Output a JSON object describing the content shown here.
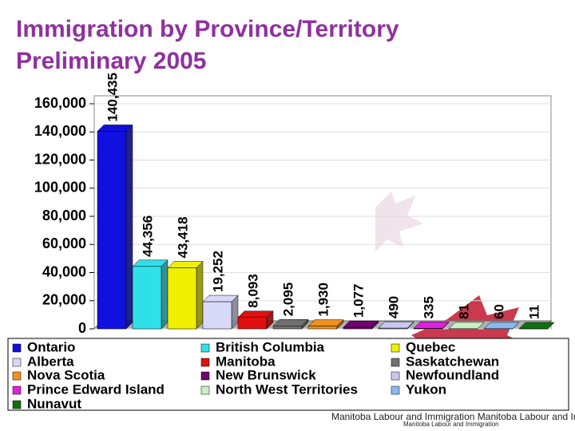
{
  "chart_data": {
    "type": "bar",
    "title": "Immigration by Province/Territory",
    "subtitle": "Preliminary 2005",
    "categories": [
      "Ontario",
      "British Columbia",
      "Quebec",
      "Alberta",
      "Manitoba",
      "Saskatchewan",
      "Nova Scotia",
      "New Brunswick",
      "Newfoundland",
      "Prince Edward Island",
      "North West Territories",
      "Yukon",
      "Nunavut"
    ],
    "values": [
      140435,
      44356,
      43418,
      19252,
      8093,
      2095,
      1930,
      1077,
      490,
      335,
      81,
      60,
      11
    ],
    "value_labels": [
      "140,435",
      "44,356",
      "43,418",
      "19,252",
      "8,093",
      "2,095",
      "1,930",
      "1,077",
      "490",
      "335",
      "81",
      "60",
      "11"
    ],
    "colors": [
      "#1010e0",
      "#30e0e8",
      "#f0f000",
      "#d8d8f8",
      "#e01010",
      "#707070",
      "#f09020",
      "#700070",
      "#c8c8f0",
      "#e020e0",
      "#c8f0c0",
      "#88b8f0",
      "#107010"
    ],
    "ylim": [
      0,
      160000
    ],
    "yticks": [
      0,
      {
        "value": 20000,
        "label": "20,000"
      },
      {
        "value": 40000,
        "label": "40,000"
      },
      {
        "value": 60000,
        "label": "60,000"
      },
      {
        "value": 80000,
        "label": "80,000"
      },
      {
        "value": 100000,
        "label": "100,000"
      },
      {
        "value": 120000,
        "label": "120,000"
      },
      {
        "value": 140000,
        "label": "140,000"
      },
      {
        "value": 160000,
        "label": "160,000"
      }
    ],
    "grid": true
  },
  "footer": {
    "text": "Manitoba Labour and Immigration Manitoba Labour and Immigration",
    "small": "Manitoba Labour and Immigration"
  }
}
